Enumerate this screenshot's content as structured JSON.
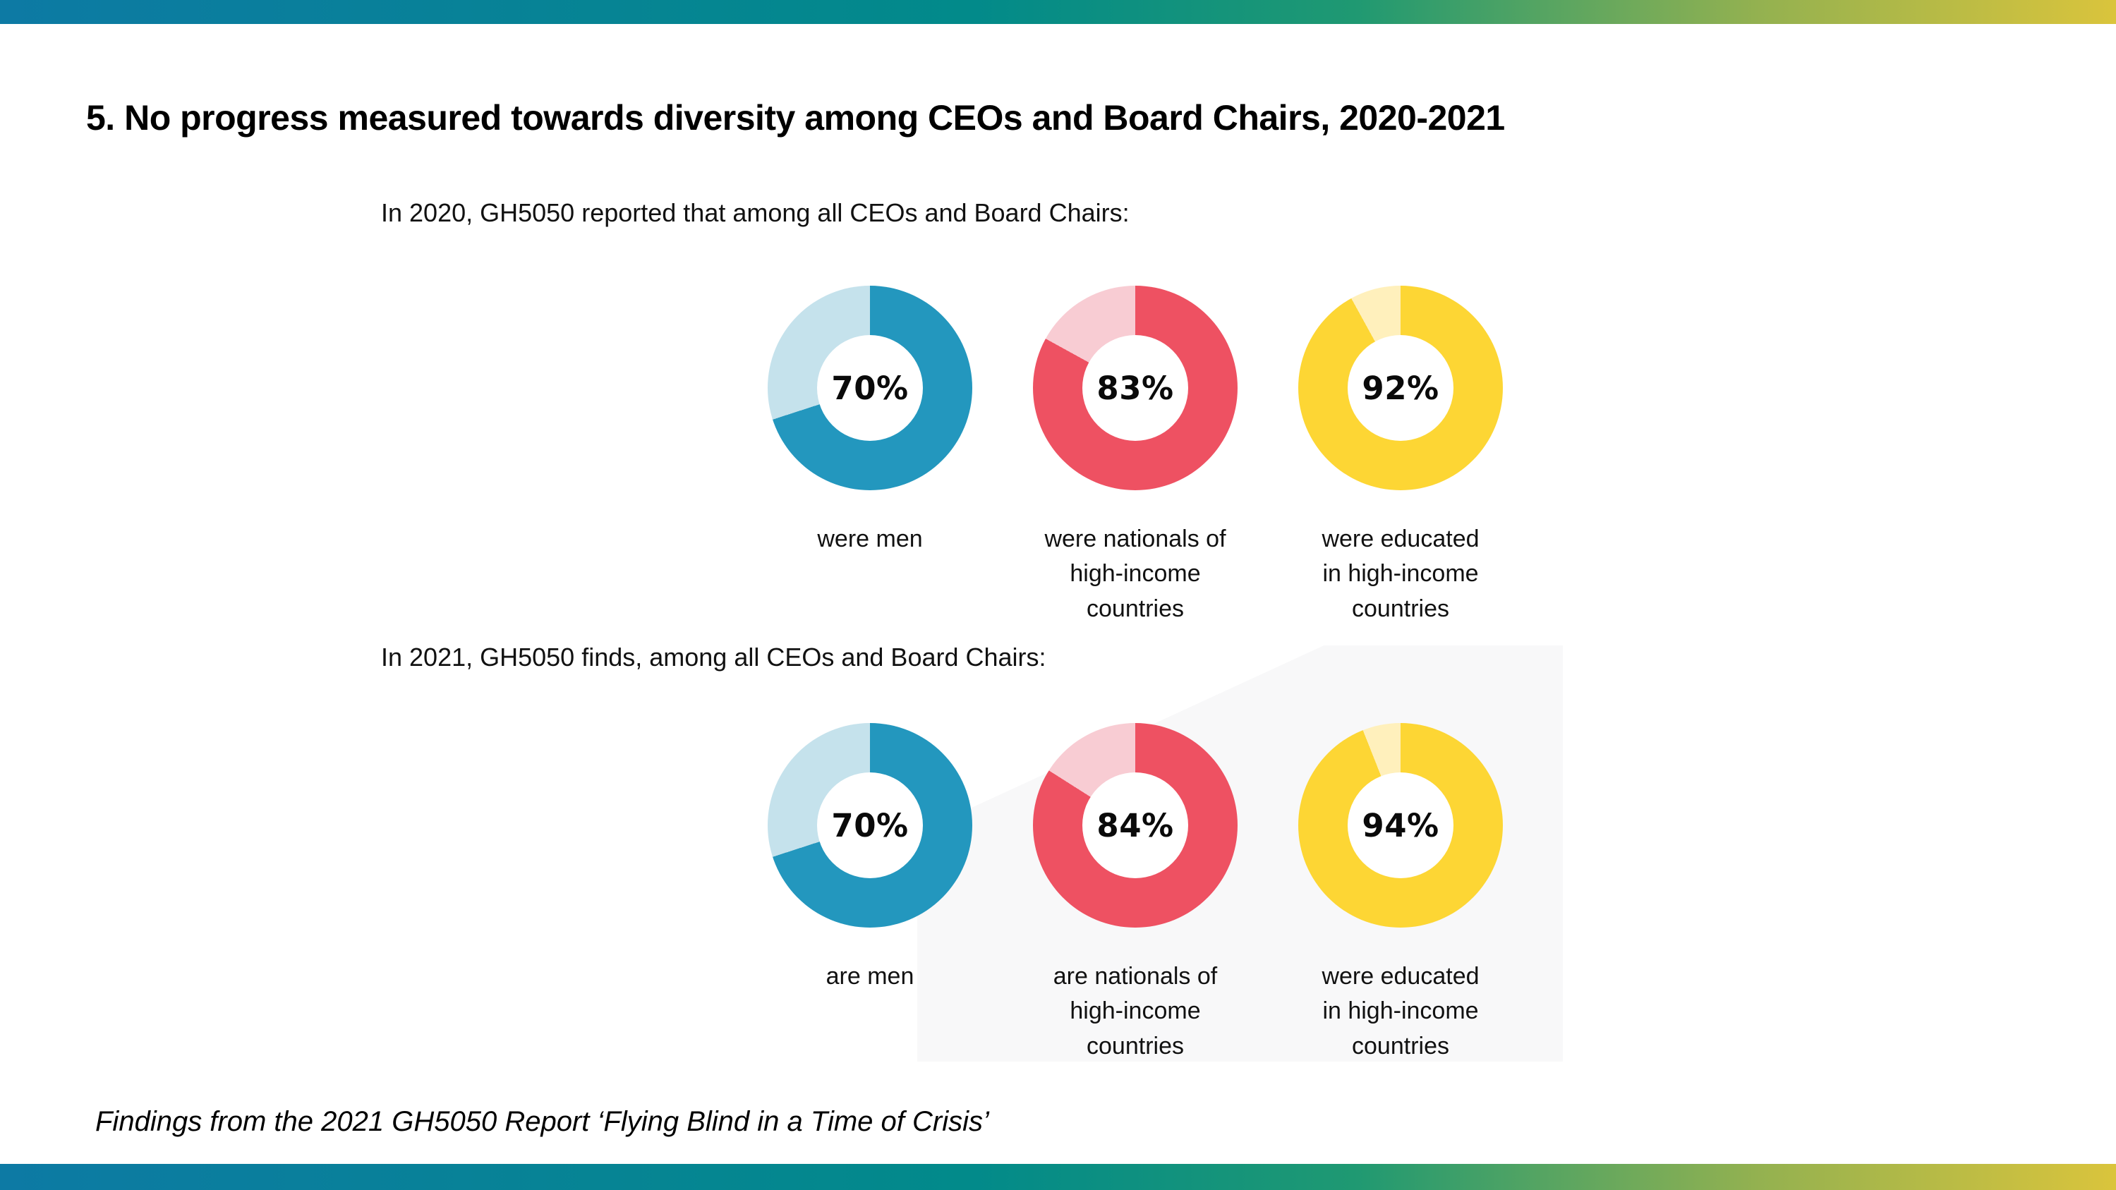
{
  "slide": {
    "title": "5. No progress measured towards diversity among CEOs and Board Chairs, 2020-2021",
    "footer": "Findings from the 2021 GH5050 Report ‘Flying Blind in a Time of Crisis’"
  },
  "theme": {
    "background": "#ffffff",
    "watermark": "#f8f8f9",
    "text": "#111111",
    "bar_gradient": [
      "#0d7aa4 0%",
      "#028a8a 46%",
      "#1f9972 64%",
      "#93b150 83%",
      "#dac43c 100%"
    ]
  },
  "chart_data": {
    "type": "pie",
    "subtype": "donut",
    "unit": "%",
    "start_angle": "top",
    "direction": "clockwise",
    "groups": [
      {
        "caption": "In 2020, GH5050 reported that among all CEOs and Board Chairs:",
        "items": [
          {
            "value": 70,
            "display": "70%",
            "caption": "were men",
            "color": "#2397be",
            "track": "#c5e2ec"
          },
          {
            "value": 83,
            "display": "83%",
            "caption": "were nationals of\nhigh-income\ncountries",
            "color": "#ee5162",
            "track": "#f8ccd3"
          },
          {
            "value": 92,
            "display": "92%",
            "caption": "were educated\nin high-income\ncountries",
            "color": "#fdd634",
            "track": "#fff0bc"
          }
        ]
      },
      {
        "caption": "In 2021, GH5050 finds, among all CEOs and Board Chairs:",
        "items": [
          {
            "value": 70,
            "display": "70%",
            "caption": "are men",
            "color": "#2397be",
            "track": "#c5e2ec"
          },
          {
            "value": 84,
            "display": "84%",
            "caption": "are nationals of\nhigh-income\ncountries",
            "color": "#ee5162",
            "track": "#f8ccd3"
          },
          {
            "value": 94,
            "display": "94%",
            "caption": "were educated\nin high-income\ncountries",
            "color": "#fdd634",
            "track": "#fff0bc"
          }
        ]
      }
    ]
  }
}
